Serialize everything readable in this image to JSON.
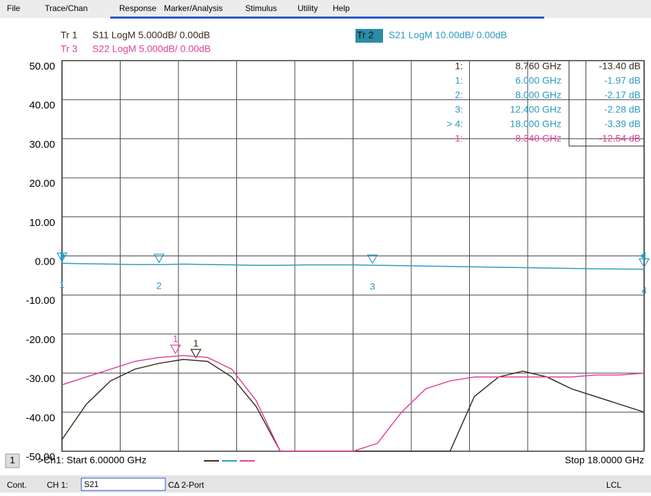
{
  "menu": [
    "File",
    "Trace/Chan",
    "Response",
    "Marker/Analysis",
    "Stimulus",
    "Utility",
    "Help"
  ],
  "traces": [
    {
      "tag": "Tr 1",
      "text": "S11 LogM 5.000dB/ 0.00dB",
      "color": "#3a2a1a"
    },
    {
      "tag": "Tr 3",
      "text": "S22 LogM 5.000dB/ 0.00dB",
      "color": "#e0409a"
    },
    {
      "tag": "Tr 2",
      "text": "S21 LogM 10.00dB/ 0.00dB",
      "color": "#2a9bc0"
    }
  ],
  "marker_table": [
    {
      "label": "1:",
      "freq": "8.760 GHz",
      "value": "-13.40 dB",
      "color": "#3a2a1a"
    },
    {
      "label": "1:",
      "freq": "6.000 GHz",
      "value": "-1.97 dB",
      "color": "#2a9bc0"
    },
    {
      "label": "2:",
      "freq": "8.000 GHz",
      "value": "-2.17 dB",
      "color": "#2a9bc0"
    },
    {
      "label": "3:",
      "freq": "12.400 GHz",
      "value": "-2.28 dB",
      "color": "#2a9bc0"
    },
    {
      "label": "> 4:",
      "freq": "18.000 GHz",
      "value": "-3.39 dB",
      "color": "#2a9bc0"
    },
    {
      "label": "1:",
      "freq": "8.340 GHz",
      "value": "-12.54 dB",
      "color": "#e0409a"
    }
  ],
  "chart_data": {
    "type": "line",
    "x": [
      6,
      6.5,
      7,
      7.5,
      8,
      8.5,
      9,
      9.5,
      10,
      10.5,
      11,
      11.5,
      12,
      12.5,
      13,
      13.5,
      14,
      14.5,
      15,
      15.5,
      16,
      16.5,
      17,
      17.5,
      18
    ],
    "xlim": [
      6,
      18
    ],
    "ylim": [
      -50,
      50
    ],
    "yticks": [
      {
        "value": 50,
        "label": "50.00"
      },
      {
        "value": 40,
        "label": "40.00"
      },
      {
        "value": 30,
        "label": "30.00"
      },
      {
        "value": 20,
        "label": "20.00"
      },
      {
        "value": 10,
        "label": "10.00"
      },
      {
        "value": 0,
        "label": "0.00"
      },
      {
        "value": -10,
        "label": "-10.00"
      },
      {
        "value": -20,
        "label": "-20.00"
      },
      {
        "value": -30,
        "label": "-30.00"
      },
      {
        "value": -40,
        "label": "-40.00"
      },
      {
        "value": -50,
        "label": "-50.00"
      }
    ],
    "grid": true,
    "series": [
      {
        "name": "S11",
        "color": "#3a2a1a",
        "values": [
          -47,
          -38,
          -32,
          -29,
          -27.5,
          -26.5,
          -27,
          -31,
          -38.5,
          -50,
          -50,
          -50,
          -50,
          -50,
          -50,
          -50,
          -50,
          -36,
          -31,
          -29.5,
          -31,
          -34,
          -36,
          -38,
          -40
        ],
        "markers": [
          {
            "x": 8.76,
            "label": "1"
          }
        ]
      },
      {
        "name": "S21",
        "color": "#2a9bc0",
        "values": [
          -1.9,
          -2,
          -2.1,
          -2.2,
          -2.2,
          -2.1,
          -2.2,
          -2.3,
          -2.4,
          -2.4,
          -2.3,
          -2.3,
          -2.3,
          -2.4,
          -2.5,
          -2.6,
          -2.7,
          -2.8,
          -2.9,
          -3,
          -3.1,
          -3.2,
          -3.3,
          -3.35,
          -3.4
        ],
        "markers": [
          {
            "x": 6,
            "label": "1"
          },
          {
            "x": 8,
            "label": "2"
          },
          {
            "x": 12.4,
            "label": "3"
          },
          {
            "x": 18,
            "label": "4"
          }
        ]
      },
      {
        "name": "S22",
        "color": "#e0409a",
        "values": [
          -33,
          -31,
          -29,
          -27,
          -26,
          -25.5,
          -26,
          -29,
          -37,
          -50,
          -50,
          -50,
          -50,
          -48,
          -40,
          -34,
          -32,
          -31,
          -31,
          -31,
          -31,
          -31,
          -30.5,
          -30.5,
          -30
        ],
        "markers": [
          {
            "x": 8.34,
            "label": "1"
          }
        ]
      }
    ]
  },
  "footer": {
    "channel": "1",
    "start": ">Ch1: Start 6.00000 GHz",
    "stop": "Stop 18.0000 GHz"
  },
  "status": {
    "mode": "Cont.",
    "ch": "CH 1:",
    "param": "S21",
    "cal": "CΔ 2-Port",
    "remote": "LCL"
  }
}
